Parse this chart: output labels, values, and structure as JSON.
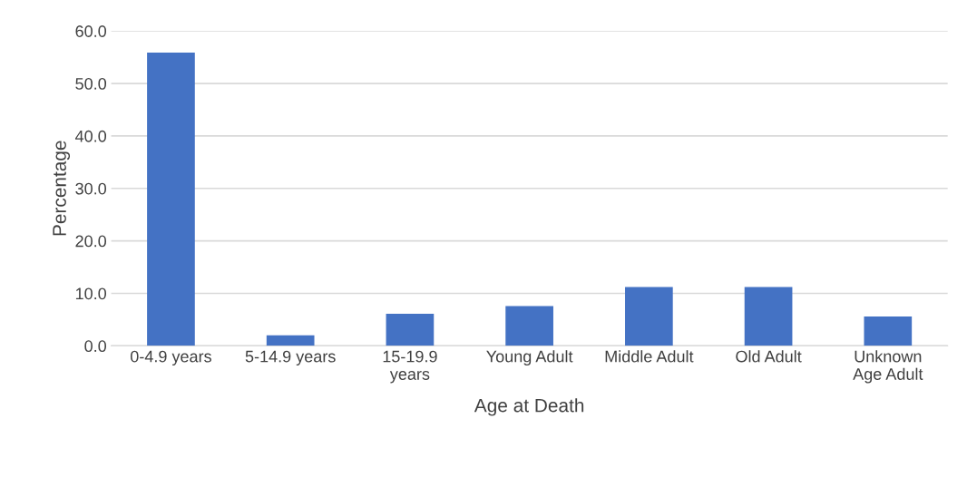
{
  "chart_data": {
    "type": "bar",
    "categories": [
      "0-4.9 years",
      "5-14.9 years",
      "15-19.9\nyears",
      "Young Adult",
      "Middle Adult",
      "Old Adult",
      "Unknown\nAge Adult"
    ],
    "values": [
      55.9,
      2.0,
      6.1,
      7.6,
      11.2,
      11.2,
      5.6
    ],
    "color": "#4472c4",
    "xlabel": "Age at Death",
    "ylabel": "Percentage",
    "ylim": [
      0,
      60
    ],
    "yticks": [
      {
        "value": 0,
        "label": "0.0"
      },
      {
        "value": 10,
        "label": "10.0"
      },
      {
        "value": 20,
        "label": "20.0"
      },
      {
        "value": 30,
        "label": "30.0"
      },
      {
        "value": 40,
        "label": "40.0"
      },
      {
        "value": 50,
        "label": "50.0"
      },
      {
        "value": 60,
        "label": "60.0"
      }
    ],
    "grid": "y",
    "legend": false
  }
}
